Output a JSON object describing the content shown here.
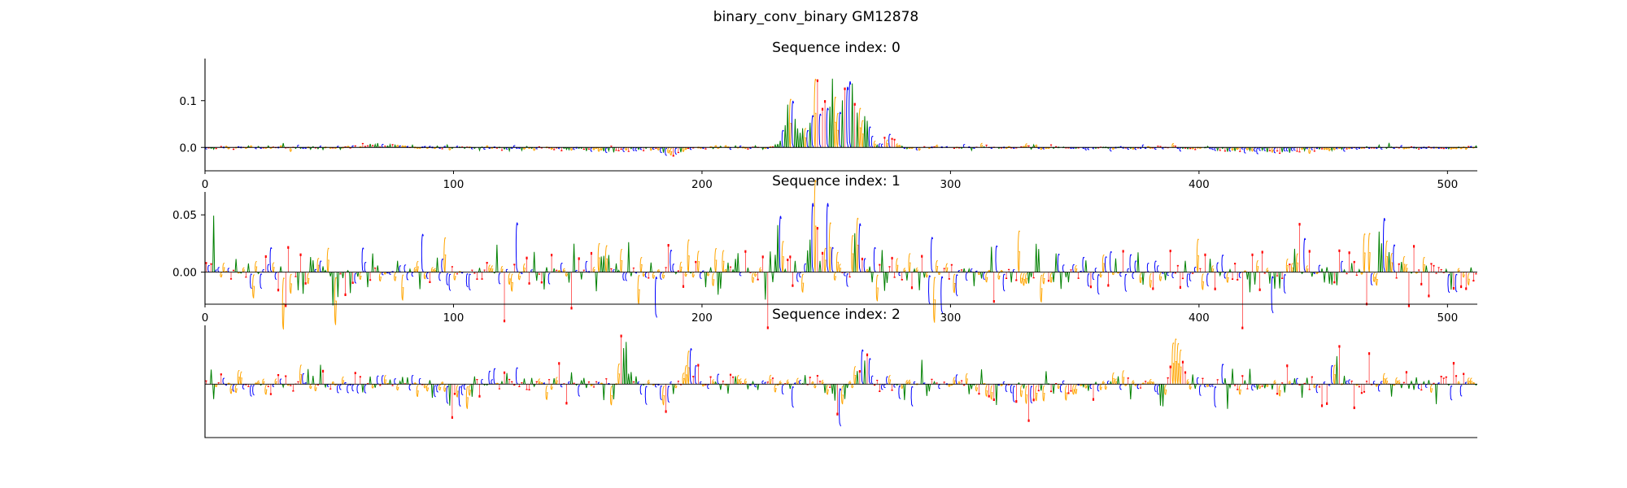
{
  "figure": {
    "suptitle": "binary_conv_binary GM12878"
  },
  "base_colors": {
    "A": "#008000",
    "C": "#0000ff",
    "G": "#ffa500",
    "T": "#ff0000"
  },
  "chart_data": [
    {
      "type": "sequence-logo",
      "title": "Sequence index: 0",
      "xlim": [
        0,
        512
      ],
      "ylim": [
        -0.05,
        0.19
      ],
      "yticks": [
        0.0,
        0.1
      ],
      "ytick_labels": [
        "0.0",
        "0.1"
      ],
      "xticks": [
        0,
        100,
        200,
        300,
        400,
        500
      ],
      "xtick_labels": [
        "0",
        "100",
        "200",
        "300",
        "400",
        "500"
      ],
      "profile": {
        "noise": 0.004,
        "peaks": [
          {
            "x": 235,
            "width": 3,
            "height": 0.13
          },
          {
            "x": 245,
            "width": 4,
            "height": 0.17
          },
          {
            "x": 252,
            "width": 3,
            "height": 0.14
          },
          {
            "x": 258,
            "width": 3,
            "height": 0.18
          },
          {
            "x": 264,
            "width": 4,
            "height": 0.09
          },
          {
            "x": 275,
            "width": 3,
            "height": 0.03
          },
          {
            "x": 188,
            "width": 5,
            "height": -0.02
          },
          {
            "x": 243,
            "width": 1,
            "height": -0.045
          },
          {
            "x": 430,
            "width": 25,
            "height": -0.012
          },
          {
            "x": 160,
            "width": 20,
            "height": -0.008
          },
          {
            "x": 70,
            "width": 10,
            "height": 0.008
          }
        ]
      }
    },
    {
      "type": "sequence-logo",
      "title": "Sequence index: 1",
      "xlim": [
        0,
        512
      ],
      "ylim": [
        -0.028,
        0.07
      ],
      "yticks": [
        0.0,
        0.05
      ],
      "ytick_labels": [
        "0.00",
        "0.05"
      ],
      "xticks": [
        0,
        100,
        200,
        300,
        400,
        500
      ],
      "xtick_labels": [
        "0",
        "100",
        "200",
        "300",
        "400",
        "500"
      ],
      "profile": {
        "noise": 0.02,
        "peaks": [
          {
            "x": 160,
            "width": 2,
            "height": 0.04
          },
          {
            "x": 232,
            "width": 3,
            "height": 0.045
          },
          {
            "x": 245,
            "width": 2,
            "height": 0.068
          },
          {
            "x": 252,
            "width": 3,
            "height": 0.05
          },
          {
            "x": 262,
            "width": 3,
            "height": 0.055
          },
          {
            "x": 440,
            "width": 4,
            "height": 0.045
          },
          {
            "x": 475,
            "width": 3,
            "height": 0.04
          },
          {
            "x": 30,
            "width": 2,
            "height": -0.024
          },
          {
            "x": 52,
            "width": 2,
            "height": -0.02
          },
          {
            "x": 430,
            "width": 2,
            "height": -0.027
          }
        ]
      }
    },
    {
      "type": "sequence-logo",
      "title": "Sequence index: 2",
      "xlim": [
        0,
        512
      ],
      "ylim": [
        -0.05,
        0.055
      ],
      "yticks": [],
      "ytick_labels": [],
      "xticks": [],
      "xtick_labels": [],
      "profile": {
        "noise": 0.012,
        "peaks": [
          {
            "x": 100,
            "width": 8,
            "height": -0.025
          },
          {
            "x": 168,
            "width": 3,
            "height": 0.05
          },
          {
            "x": 185,
            "width": 3,
            "height": -0.03
          },
          {
            "x": 195,
            "width": 3,
            "height": 0.03
          },
          {
            "x": 255,
            "width": 2,
            "height": -0.05
          },
          {
            "x": 265,
            "width": 3,
            "height": 0.04
          },
          {
            "x": 390,
            "width": 4,
            "height": 0.05
          },
          {
            "x": 385,
            "width": 3,
            "height": -0.03
          },
          {
            "x": 330,
            "width": 20,
            "height": -0.015
          },
          {
            "x": 455,
            "width": 3,
            "height": 0.03
          }
        ]
      }
    }
  ]
}
